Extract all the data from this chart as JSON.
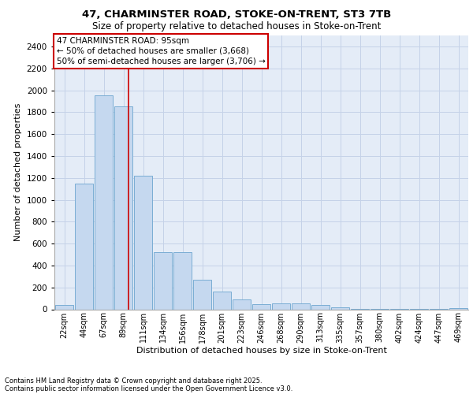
{
  "title_line1": "47, CHARMINSTER ROAD, STOKE-ON-TRENT, ST3 7TB",
  "title_line2": "Size of property relative to detached houses in Stoke-on-Trent",
  "xlabel": "Distribution of detached houses by size in Stoke-on-Trent",
  "ylabel": "Number of detached properties",
  "categories": [
    "22sqm",
    "44sqm",
    "67sqm",
    "89sqm",
    "111sqm",
    "134sqm",
    "156sqm",
    "178sqm",
    "201sqm",
    "223sqm",
    "246sqm",
    "268sqm",
    "290sqm",
    "313sqm",
    "335sqm",
    "357sqm",
    "380sqm",
    "402sqm",
    "424sqm",
    "447sqm",
    "469sqm"
  ],
  "values": [
    40,
    1150,
    1950,
    1850,
    1220,
    520,
    520,
    270,
    160,
    90,
    50,
    55,
    55,
    40,
    20,
    5,
    5,
    3,
    2,
    2,
    10
  ],
  "bar_color": "#c5d8ef",
  "bar_edge_color": "#7aadd4",
  "grid_color": "#c5d2e8",
  "background_color": "#e4ecf7",
  "annotation_text": "47 CHARMINSTER ROAD: 95sqm\n← 50% of detached houses are smaller (3,668)\n50% of semi-detached houses are larger (3,706) →",
  "annotation_box_facecolor": "white",
  "annotation_box_edgecolor": "#cc0000",
  "vline_x_index": 3.27,
  "vline_color": "#cc0000",
  "ylim": [
    0,
    2500
  ],
  "ytick_step": 200,
  "footer_line1": "Contains HM Land Registry data © Crown copyright and database right 2025.",
  "footer_line2": "Contains public sector information licensed under the Open Government Licence v3.0."
}
